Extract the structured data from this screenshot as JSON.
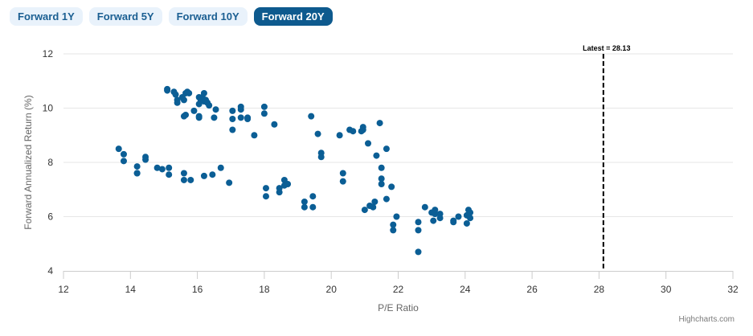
{
  "tabs": [
    {
      "label": "Forward 1Y",
      "active": false
    },
    {
      "label": "Forward 5Y",
      "active": false
    },
    {
      "label": "Forward 10Y",
      "active": false
    },
    {
      "label": "Forward 20Y",
      "active": true
    }
  ],
  "credit": "Highcharts.com",
  "colors": {
    "accent": "#0e5a8e",
    "point": "#0b5e95",
    "tab_bg": "#e9f2fb"
  },
  "chart_data": {
    "type": "scatter",
    "title": "",
    "xlabel": "P/E Ratio",
    "ylabel": "Forward Annualized Return (%)",
    "xlim": [
      12,
      32
    ],
    "ylim": [
      4,
      12
    ],
    "xticks": [
      12,
      14,
      16,
      18,
      20,
      22,
      24,
      26,
      28,
      30,
      32
    ],
    "yticks": [
      4,
      6,
      8,
      10,
      12
    ],
    "grid": "horizontal",
    "annotation": {
      "label": "Latest = 28.13",
      "x": 28.13,
      "style": "dashed vertical line"
    },
    "series": [
      {
        "points": [
          [
            15.1,
            10.7
          ],
          [
            15.1,
            10.65
          ],
          [
            15.3,
            10.6
          ],
          [
            15.35,
            10.5
          ],
          [
            15.4,
            10.3
          ],
          [
            15.4,
            10.2
          ],
          [
            15.55,
            10.4
          ],
          [
            15.6,
            10.3
          ],
          [
            15.65,
            10.55
          ],
          [
            15.7,
            10.6
          ],
          [
            15.75,
            10.55
          ],
          [
            16.05,
            10.4
          ],
          [
            16.1,
            10.3
          ],
          [
            16.15,
            10.4
          ],
          [
            16.2,
            10.55
          ],
          [
            16.25,
            10.3
          ],
          [
            16.3,
            10.2
          ],
          [
            16.05,
            10.15
          ],
          [
            16.35,
            10.1
          ],
          [
            16.2,
            10.25
          ],
          [
            15.6,
            9.7
          ],
          [
            15.65,
            9.75
          ],
          [
            15.9,
            9.9
          ],
          [
            16.05,
            9.7
          ],
          [
            16.05,
            9.65
          ],
          [
            16.5,
            9.65
          ],
          [
            16.55,
            9.95
          ],
          [
            17.05,
            9.9
          ],
          [
            17.05,
            9.6
          ],
          [
            17.3,
            9.65
          ],
          [
            17.3,
            9.95
          ],
          [
            17.3,
            10.05
          ],
          [
            17.5,
            9.6
          ],
          [
            17.5,
            9.65
          ],
          [
            18.0,
            10.05
          ],
          [
            18.0,
            9.8
          ],
          [
            17.05,
            9.2
          ],
          [
            17.7,
            9.0
          ],
          [
            18.3,
            9.4
          ],
          [
            13.65,
            8.5
          ],
          [
            13.8,
            8.3
          ],
          [
            13.8,
            8.05
          ],
          [
            14.2,
            7.85
          ],
          [
            14.2,
            7.6
          ],
          [
            14.2,
            7.6
          ],
          [
            14.45,
            8.2
          ],
          [
            14.45,
            8.1
          ],
          [
            14.8,
            7.8
          ],
          [
            14.95,
            7.75
          ],
          [
            15.15,
            7.8
          ],
          [
            15.15,
            7.55
          ],
          [
            15.6,
            7.6
          ],
          [
            15.6,
            7.35
          ],
          [
            15.8,
            7.35
          ],
          [
            16.2,
            7.5
          ],
          [
            16.45,
            7.55
          ],
          [
            16.7,
            7.8
          ],
          [
            16.95,
            7.25
          ],
          [
            18.05,
            7.05
          ],
          [
            18.05,
            6.75
          ],
          [
            18.45,
            7.05
          ],
          [
            18.45,
            6.9
          ],
          [
            18.6,
            7.35
          ],
          [
            18.6,
            7.15
          ],
          [
            18.7,
            7.2
          ],
          [
            19.2,
            6.55
          ],
          [
            19.2,
            6.35
          ],
          [
            19.45,
            6.75
          ],
          [
            19.45,
            6.35
          ],
          [
            19.4,
            9.7
          ],
          [
            19.6,
            9.05
          ],
          [
            19.7,
            8.35
          ],
          [
            19.7,
            8.2
          ],
          [
            20.25,
            9.0
          ],
          [
            20.55,
            9.2
          ],
          [
            20.65,
            9.15
          ],
          [
            20.9,
            9.15
          ],
          [
            20.95,
            9.3
          ],
          [
            20.95,
            9.2
          ],
          [
            20.35,
            7.6
          ],
          [
            20.35,
            7.3
          ],
          [
            21.1,
            8.7
          ],
          [
            21.35,
            8.25
          ],
          [
            21.45,
            9.45
          ],
          [
            21.5,
            7.8
          ],
          [
            21.5,
            7.4
          ],
          [
            21.5,
            7.2
          ],
          [
            21.65,
            8.5
          ],
          [
            21.65,
            6.65
          ],
          [
            21.8,
            7.1
          ],
          [
            21.0,
            6.25
          ],
          [
            21.15,
            6.4
          ],
          [
            21.25,
            6.35
          ],
          [
            21.3,
            6.55
          ],
          [
            21.85,
            5.7
          ],
          [
            21.85,
            5.5
          ],
          [
            21.95,
            6.0
          ],
          [
            22.6,
            5.8
          ],
          [
            22.6,
            5.5
          ],
          [
            22.6,
            4.7
          ],
          [
            22.8,
            6.35
          ],
          [
            23.0,
            6.15
          ],
          [
            23.05,
            5.85
          ],
          [
            23.1,
            6.1
          ],
          [
            23.1,
            6.25
          ],
          [
            23.25,
            6.1
          ],
          [
            23.25,
            5.95
          ],
          [
            23.65,
            5.85
          ],
          [
            23.65,
            5.8
          ],
          [
            23.8,
            6.0
          ],
          [
            24.05,
            6.05
          ],
          [
            24.05,
            5.75
          ],
          [
            24.1,
            6.25
          ],
          [
            24.15,
            5.95
          ],
          [
            24.15,
            6.15
          ]
        ]
      }
    ]
  }
}
